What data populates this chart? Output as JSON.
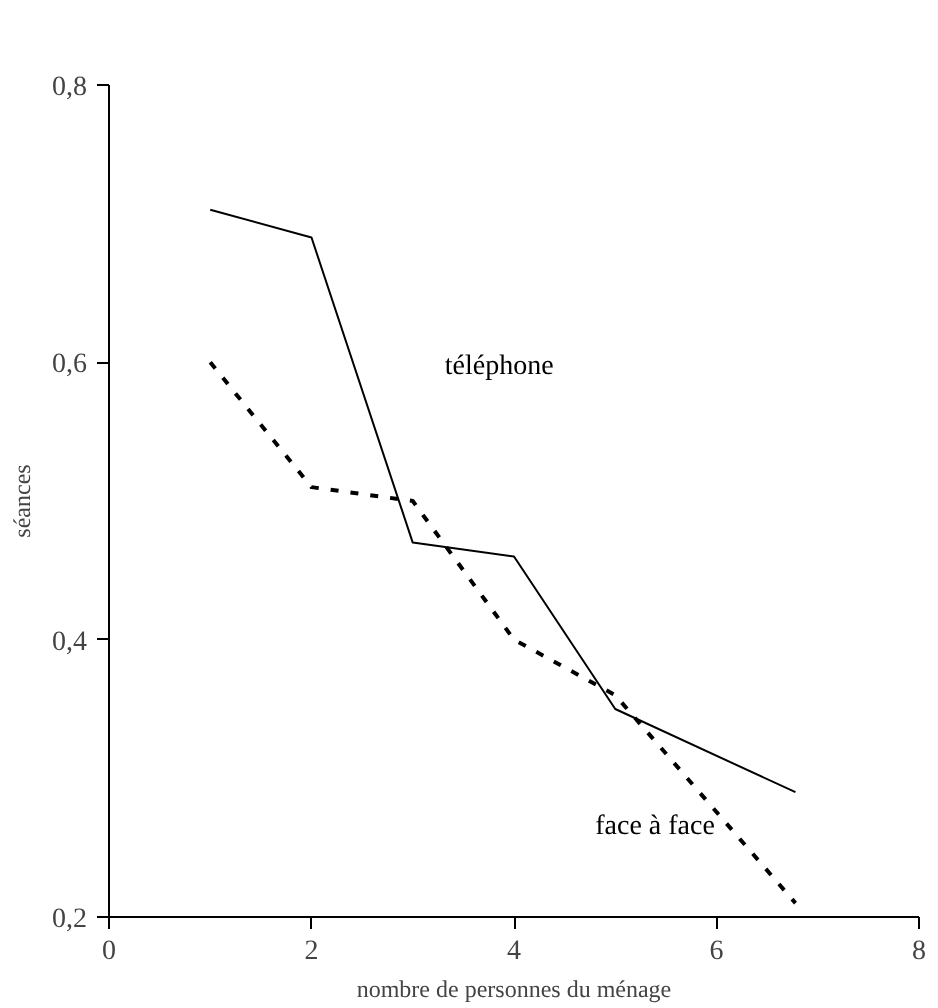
{
  "chart_data": {
    "type": "line",
    "xlabel": "nombre de personnes du ménage",
    "ylabel": "séances",
    "xlim": [
      0,
      8
    ],
    "xticks": [
      0,
      2,
      4,
      6,
      8
    ],
    "ylim": [
      0.2,
      0.8
    ],
    "yticks": [
      {
        "value": 0.2,
        "label": "0,2"
      },
      {
        "value": 0.4,
        "label": "0,4"
      },
      {
        "value": 0.6,
        "label": "0,6"
      },
      {
        "value": 0.8,
        "label": "0,8"
      }
    ],
    "grid": false,
    "marker": "none",
    "series": [
      {
        "name": "téléphone",
        "color": "#000000",
        "line_style": "solid",
        "x": [
          1,
          2,
          3,
          4,
          5,
          6.78
        ],
        "values": [
          0.71,
          0.69,
          0.47,
          0.46,
          0.35,
          0.29
        ]
      },
      {
        "name": "face à face",
        "color": "#000000",
        "line_style": "dashed",
        "x": [
          1,
          2,
          3,
          4,
          5,
          6.78
        ],
        "values": [
          0.6,
          0.51,
          0.5,
          0.4,
          0.36,
          0.21
        ]
      }
    ]
  }
}
